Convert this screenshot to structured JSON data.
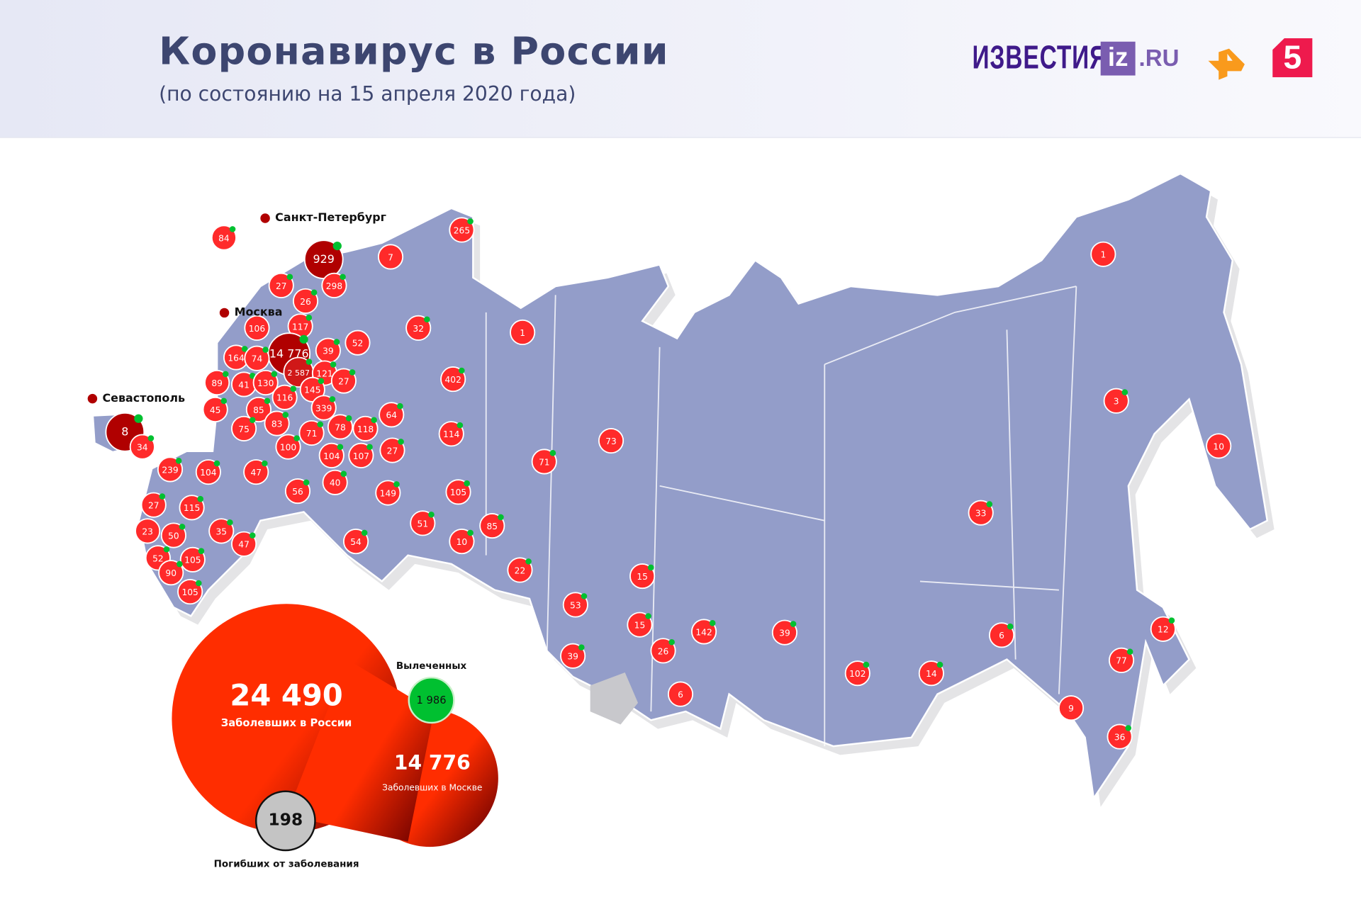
{
  "header": {
    "title": "Коронавирус в России",
    "subtitle": "(по состоянию на 15 апреля 2020 года)",
    "logos": {
      "izvestia": "ИЗВЕСТИЯ",
      "iz": "iz",
      "ru": ".RU",
      "ren_tv": "Рен ТВ",
      "channel5": "5"
    }
  },
  "cities": {
    "spb": "Санкт-Петербург",
    "moscow": "Москва",
    "sevastopol": "Севастополь"
  },
  "colors": {
    "map": "#939dc9",
    "marker": "#ff2a2a",
    "major_city": "#b00000",
    "recovered": "#00c030",
    "deaths": "#c4c4c4"
  },
  "summary": {
    "russia_cases": "24 490",
    "russia_label": "Заболевших в России",
    "moscow_cases": "14 776",
    "moscow_label": "Заболевших в Москве",
    "recovered": "1 986",
    "recovered_label": "Вылеченных",
    "deaths": "198",
    "deaths_label": "Погибших от заболевания"
  },
  "markers": [
    {
      "v": "84",
      "r": true
    },
    {
      "v": "929",
      "r": true,
      "major": true
    },
    {
      "v": "7",
      "r": false
    },
    {
      "v": "265",
      "r": true
    },
    {
      "v": "27",
      "r": true
    },
    {
      "v": "298",
      "r": true
    },
    {
      "v": "26",
      "r": true
    },
    {
      "v": "106",
      "r": false
    },
    {
      "v": "117",
      "r": true
    },
    {
      "v": "32",
      "r": true
    },
    {
      "v": "1",
      "r": false
    },
    {
      "v": "52",
      "r": false
    },
    {
      "v": "14 776",
      "r": true,
      "major": true
    },
    {
      "v": "39",
      "r": true
    },
    {
      "v": "164",
      "r": true
    },
    {
      "v": "74",
      "r": true
    },
    {
      "v": "2 587",
      "r": true,
      "mid": true
    },
    {
      "v": "121",
      "r": true
    },
    {
      "v": "27",
      "r": true
    },
    {
      "v": "402",
      "r": true
    },
    {
      "v": "89",
      "r": true
    },
    {
      "v": "41",
      "r": true
    },
    {
      "v": "130",
      "r": true
    },
    {
      "v": "145",
      "r": true
    },
    {
      "v": "116",
      "r": true
    },
    {
      "v": "339",
      "r": true
    },
    {
      "v": "45",
      "r": true
    },
    {
      "v": "85",
      "r": true
    },
    {
      "v": "64",
      "r": true
    },
    {
      "v": "8",
      "r": true,
      "major": true
    },
    {
      "v": "34",
      "r": true
    },
    {
      "v": "75",
      "r": true
    },
    {
      "v": "83",
      "r": true
    },
    {
      "v": "71",
      "r": true
    },
    {
      "v": "78",
      "r": true
    },
    {
      "v": "118",
      "r": true
    },
    {
      "v": "114",
      "r": true
    },
    {
      "v": "100",
      "r": true
    },
    {
      "v": "104",
      "r": true
    },
    {
      "v": "107",
      "r": true
    },
    {
      "v": "27",
      "r": true
    },
    {
      "v": "71",
      "r": true
    },
    {
      "v": "73",
      "r": false
    },
    {
      "v": "239",
      "r": true
    },
    {
      "v": "104",
      "r": true
    },
    {
      "v": "47",
      "r": true
    },
    {
      "v": "56",
      "r": true
    },
    {
      "v": "40",
      "r": true
    },
    {
      "v": "149",
      "r": true
    },
    {
      "v": "105",
      "r": true
    },
    {
      "v": "27",
      "r": true
    },
    {
      "v": "115",
      "r": true
    },
    {
      "v": "85",
      "r": true
    },
    {
      "v": "23",
      "r": false
    },
    {
      "v": "50",
      "r": true
    },
    {
      "v": "35",
      "r": true
    },
    {
      "v": "47",
      "r": true
    },
    {
      "v": "51",
      "r": true
    },
    {
      "v": "10",
      "r": true
    },
    {
      "v": "54",
      "r": true
    },
    {
      "v": "52",
      "r": true
    },
    {
      "v": "105",
      "r": true
    },
    {
      "v": "90",
      "r": true
    },
    {
      "v": "22",
      "r": true
    },
    {
      "v": "105",
      "r": true
    },
    {
      "v": "15",
      "r": true
    },
    {
      "v": "53",
      "r": true
    },
    {
      "v": "15",
      "r": true
    },
    {
      "v": "142",
      "r": true
    },
    {
      "v": "39",
      "r": true
    },
    {
      "v": "26",
      "r": true
    },
    {
      "v": "39",
      "r": true
    },
    {
      "v": "6",
      "r": false
    },
    {
      "v": "102",
      "r": true
    },
    {
      "v": "14",
      "r": true
    },
    {
      "v": "6",
      "r": true
    },
    {
      "v": "1",
      "r": false
    },
    {
      "v": "3",
      "r": true
    },
    {
      "v": "10",
      "r": false
    },
    {
      "v": "33",
      "r": true
    },
    {
      "v": "12",
      "r": true
    },
    {
      "v": "77",
      "r": true
    },
    {
      "v": "9",
      "r": false
    },
    {
      "v": "36",
      "r": true
    }
  ]
}
